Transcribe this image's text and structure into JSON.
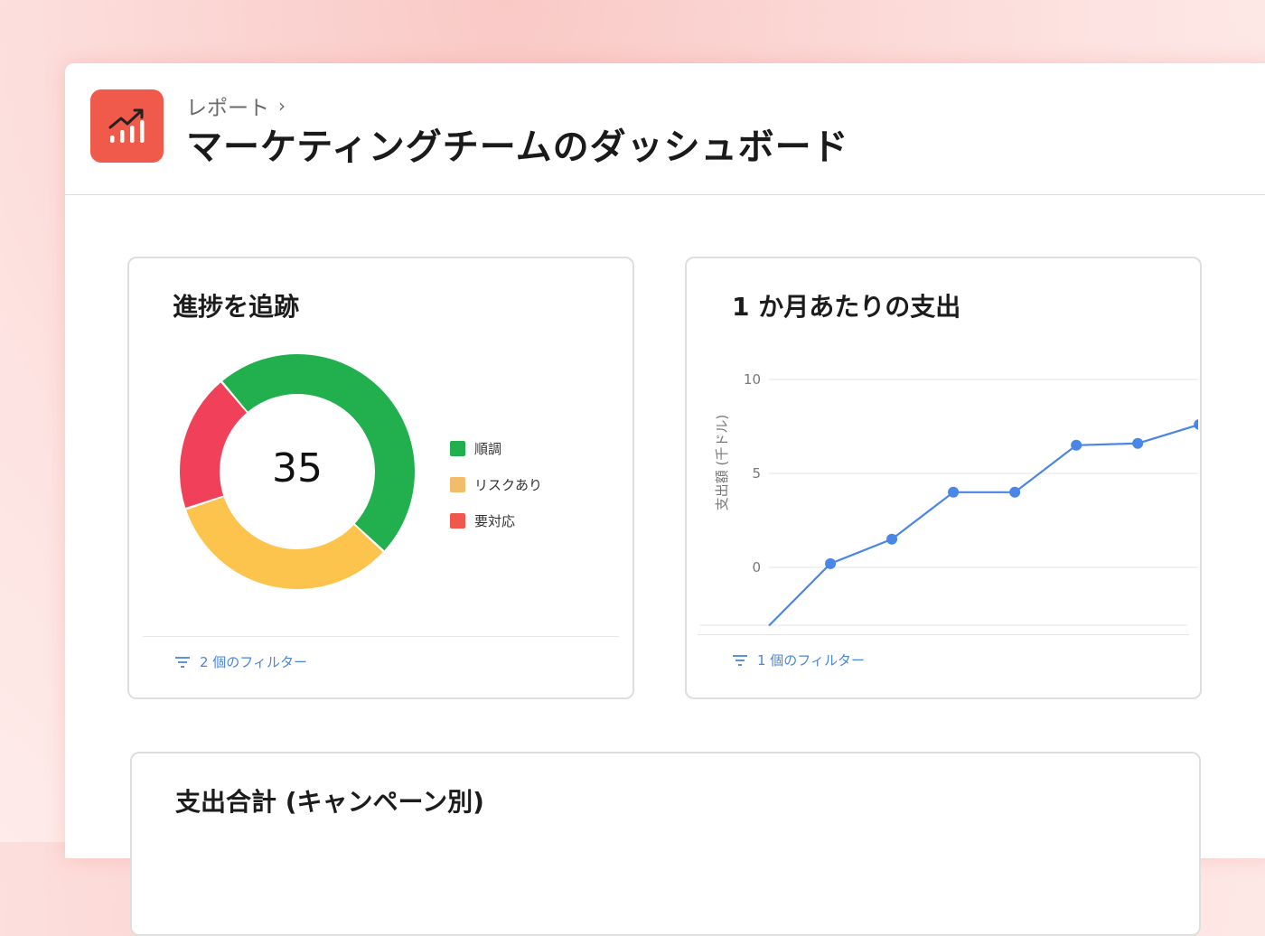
{
  "header": {
    "breadcrumb": "レポート",
    "title": "マーケティングチームのダッシュボード"
  },
  "cards": {
    "progress": {
      "title": "進捗を追跡",
      "center_value": "35",
      "legend": [
        {
          "label": "順調",
          "color": "#22b04f"
        },
        {
          "label": "リスクあり",
          "color": "#f2bd6b"
        },
        {
          "label": "要対応",
          "color": "#f0584d"
        }
      ],
      "filter_label": "2 個のフィルター"
    },
    "spend": {
      "title": "1 か月あたりの支出",
      "filter_label": "1 個のフィルター"
    },
    "total": {
      "title": "支出合計 (キャンペーン別)"
    }
  },
  "chart_data": [
    {
      "type": "pie",
      "labels": [
        "順調",
        "リスクあり",
        "要対応"
      ],
      "values": [
        48,
        33,
        19
      ],
      "colors": [
        "#22b04f",
        "#fcc44d",
        "#f0405a"
      ]
    },
    {
      "type": "line",
      "ylabel": "支出額 (千ドル)",
      "yticks": [
        0,
        5,
        10
      ],
      "ylim": [
        -3,
        10
      ],
      "grid": true,
      "series": [
        {
          "x": [
            0,
            1,
            2,
            3,
            4,
            5,
            6,
            7,
            8
          ],
          "y": [
            -3.1,
            0.2,
            1.5,
            4,
            4,
            6.5,
            6.6,
            7.6,
            7.6
          ],
          "markers": [
            false,
            true,
            true,
            true,
            true,
            true,
            true,
            true,
            false
          ],
          "color": "#4a86e8"
        }
      ]
    }
  ]
}
